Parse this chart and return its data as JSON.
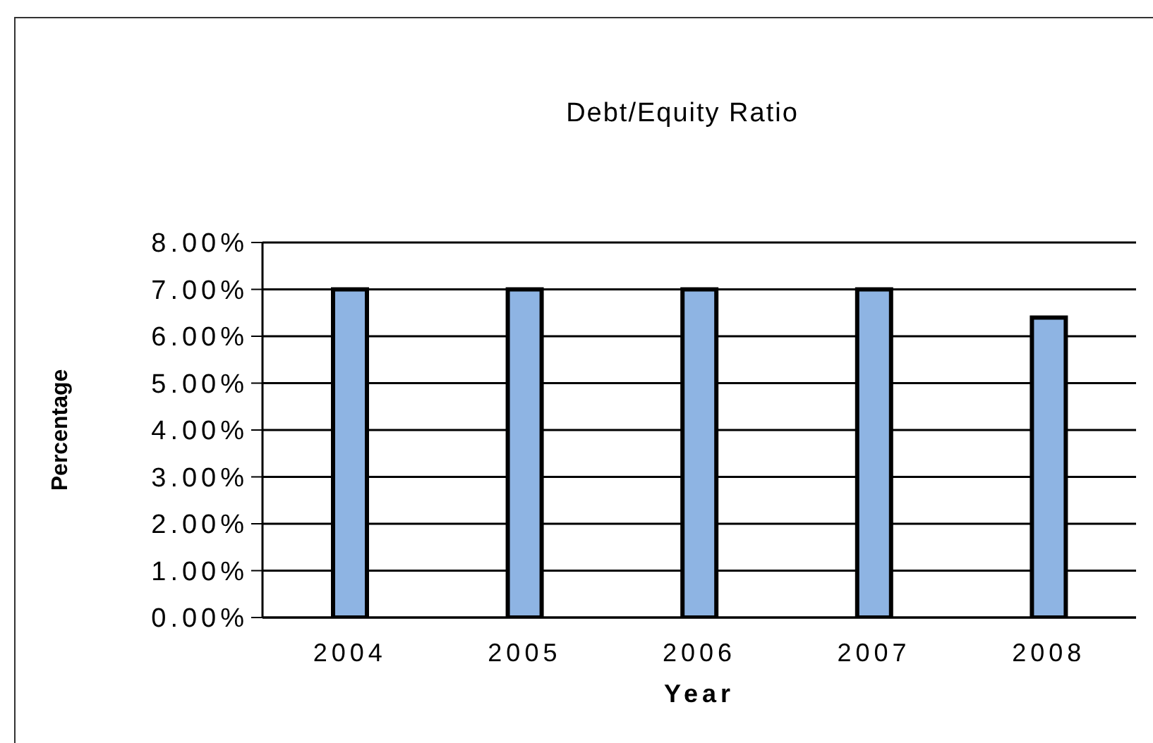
{
  "chart_data": {
    "type": "bar",
    "title": "Debt/Equity Ratio",
    "xlabel": "Year",
    "ylabel": "Percentage",
    "categories": [
      "2004",
      "2005",
      "2006",
      "2007",
      "2008"
    ],
    "values": [
      7,
      7,
      7,
      7,
      6.4
    ],
    "color": "#8eb4e3",
    "ylim": [
      0,
      8
    ],
    "yticks": [
      {
        "value": 0,
        "label": "0.00%"
      },
      {
        "value": 1,
        "label": "1.00%"
      },
      {
        "value": 2,
        "label": "2.00%"
      },
      {
        "value": 3,
        "label": "3.00%"
      },
      {
        "value": 4,
        "label": "4.00%"
      },
      {
        "value": 5,
        "label": "5.00%"
      },
      {
        "value": 6,
        "label": "6.00%"
      },
      {
        "value": 7,
        "label": "7.00%"
      },
      {
        "value": 8,
        "label": "8.00%"
      }
    ],
    "grid": "y"
  }
}
